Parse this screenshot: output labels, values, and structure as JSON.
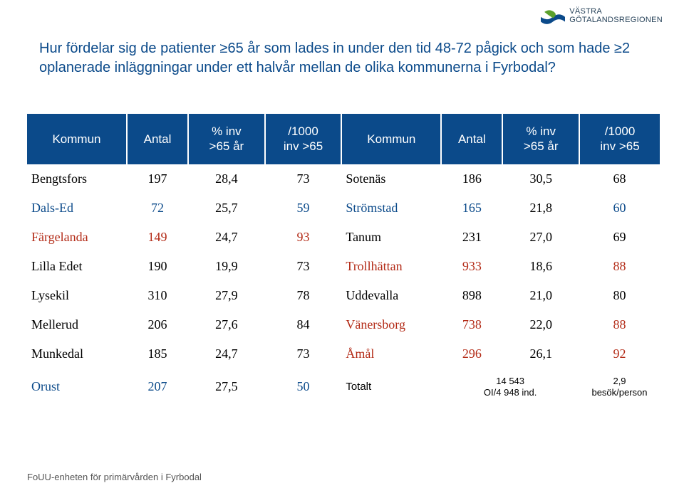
{
  "logo": {
    "line1": "VÄSTRA",
    "line2": "GÖTALANDSREGIONEN",
    "mark_bg": "#ffffff",
    "mark_blue": "#0b4a8a",
    "mark_green": "#5aa02c"
  },
  "title": "Hur fördelar sig de patienter ≥65 år som lades in under den tid 48-72 pågick och som hade ≥2 oplanerade inläggningar under ett halvår mellan de olika kommunerna i Fyrbodal?",
  "title_color": "#0b4a8a",
  "header": {
    "bg": "#0b4a8a",
    "fg": "#ffffff",
    "cols": [
      "Kommun",
      "Antal",
      "% inv\n>65 år",
      "/1000\ninv >65",
      "Kommun",
      "Antal",
      "% inv\n>65 år",
      "/1000\ninv >65"
    ]
  },
  "colors": {
    "black": "#000000",
    "blue": "#0b4a8a",
    "red": "#b32b17"
  },
  "rows": [
    {
      "l": {
        "name": "Bengtsfors",
        "c": "black",
        "antal": "197",
        "pct": "28,4",
        "per": "73",
        "per_c": "black"
      },
      "r": {
        "name": "Sotenäs",
        "c": "black",
        "antal": "186",
        "pct": "30,5",
        "per": "68",
        "per_c": "black"
      }
    },
    {
      "l": {
        "name": "Dals-Ed",
        "c": "blue",
        "antal": "72",
        "pct": "25,7",
        "per": "59",
        "per_c": "blue"
      },
      "r": {
        "name": "Strömstad",
        "c": "blue",
        "antal": "165",
        "pct": "21,8",
        "per": "60",
        "per_c": "blue"
      }
    },
    {
      "l": {
        "name": "Färgelanda",
        "c": "red",
        "antal": "149",
        "pct": "24,7",
        "per": "93",
        "per_c": "red"
      },
      "r": {
        "name": "Tanum",
        "c": "black",
        "antal": "231",
        "pct": "27,0",
        "per": "69",
        "per_c": "black"
      }
    },
    {
      "l": {
        "name": "Lilla Edet",
        "c": "black",
        "antal": "190",
        "pct": "19,9",
        "per": "73",
        "per_c": "black"
      },
      "r": {
        "name": "Trollhättan",
        "c": "red",
        "antal": "933",
        "pct": "18,6",
        "per": "88",
        "per_c": "red"
      }
    },
    {
      "l": {
        "name": "Lysekil",
        "c": "black",
        "antal": "310",
        "pct": "27,9",
        "per": "78",
        "per_c": "black"
      },
      "r": {
        "name": "Uddevalla",
        "c": "black",
        "antal": "898",
        "pct": "21,0",
        "per": "80",
        "per_c": "black"
      }
    },
    {
      "l": {
        "name": "Mellerud",
        "c": "black",
        "antal": "206",
        "pct": "27,6",
        "per": "84",
        "per_c": "black"
      },
      "r": {
        "name": "Vänersborg",
        "c": "red",
        "antal": "738",
        "pct": "22,0",
        "per": "88",
        "per_c": "red"
      }
    },
    {
      "l": {
        "name": "Munkedal",
        "c": "black",
        "antal": "185",
        "pct": "24,7",
        "per": "73",
        "per_c": "black"
      },
      "r": {
        "name": "Åmål",
        "c": "red",
        "antal": "296",
        "pct": "26,1",
        "per": "92",
        "per_c": "red"
      }
    }
  ],
  "last_row": {
    "l": {
      "name": "Orust",
      "c": "blue",
      "antal": "207",
      "pct": "27,5",
      "per": "50",
      "per_c": "blue"
    },
    "r": {
      "name": "Totalt",
      "antal": "14 543\nOI/4 948 ind.",
      "pct": "2,9\nbesök/person"
    }
  },
  "footnote": "FoUU-enheten för primärvården i Fyrbodal"
}
